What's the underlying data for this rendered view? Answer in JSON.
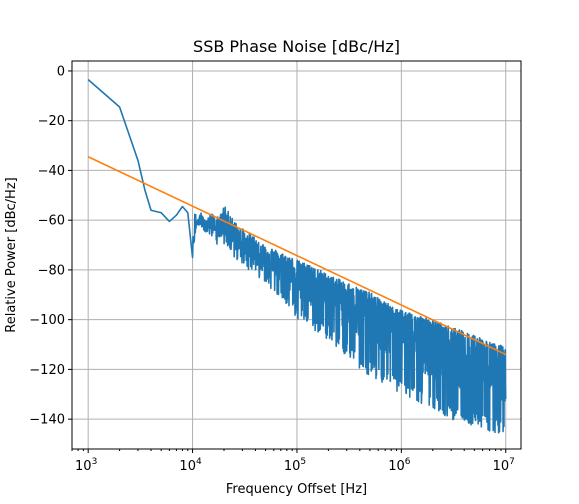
{
  "chart_data": {
    "type": "line",
    "title": "SSB Phase Noise [dBc/Hz]",
    "xlabel": "Frequency Offset [Hz]",
    "ylabel": "Relative Power [dBc/Hz]",
    "xscale": "log",
    "xlim": [
      700,
      14000000
    ],
    "ylim": [
      -152,
      4
    ],
    "x_ticks": [
      {
        "value": 1000,
        "base": "10",
        "exp": "3"
      },
      {
        "value": 10000,
        "base": "10",
        "exp": "4"
      },
      {
        "value": 100000,
        "base": "10",
        "exp": "5"
      },
      {
        "value": 1000000,
        "base": "10",
        "exp": "6"
      },
      {
        "value": 10000000,
        "base": "10",
        "exp": "7"
      }
    ],
    "y_ticks": [
      {
        "value": 0,
        "label": "0"
      },
      {
        "value": -20,
        "label": "−20"
      },
      {
        "value": -40,
        "label": "−40"
      },
      {
        "value": -60,
        "label": "−60"
      },
      {
        "value": -80,
        "label": "−80"
      },
      {
        "value": -100,
        "label": "−100"
      },
      {
        "value": -120,
        "label": "−120"
      },
      {
        "value": -140,
        "label": "−140"
      }
    ],
    "grid": true,
    "legend": "none",
    "series": [
      {
        "color": "#1f77b4",
        "noisy_above": 10000,
        "x": [
          1000,
          2000,
          3000,
          3500,
          4000,
          5000,
          6000,
          7000,
          8000,
          9000,
          10000,
          11000,
          12000,
          13000,
          15000,
          18000,
          20000,
          25000,
          30000,
          40000,
          50000,
          70000,
          100000,
          150000,
          200000,
          300000,
          500000,
          700000,
          1000000,
          2000000,
          3000000,
          5000000,
          7000000,
          10000000
        ],
        "y": [
          -3.5,
          -14.5,
          -36,
          -48,
          -56,
          -57,
          -60.5,
          -58,
          -54.5,
          -57,
          -75,
          -60,
          -58.5,
          -63,
          -60,
          -62,
          -57,
          -63,
          -66,
          -70,
          -73,
          -76,
          -79,
          -82,
          -85,
          -88,
          -92,
          -96,
          -99,
          -103,
          -106,
          -109,
          -112,
          -114
        ],
        "noise_floor_y": [
          -62,
          -72,
          -78,
          -85,
          -92,
          -100,
          -108,
          -115,
          -123,
          -130,
          -140,
          -145,
          -146
        ],
        "noise_floor_x": [
          10000,
          20000,
          30000,
          50000,
          70000,
          100000,
          200000,
          300000,
          500000,
          1000000,
          3000000,
          7000000,
          10000000
        ]
      },
      {
        "color": "#ff7f0e",
        "x": [
          1000,
          10000000
        ],
        "y": [
          -34.5,
          -114
        ]
      }
    ]
  }
}
